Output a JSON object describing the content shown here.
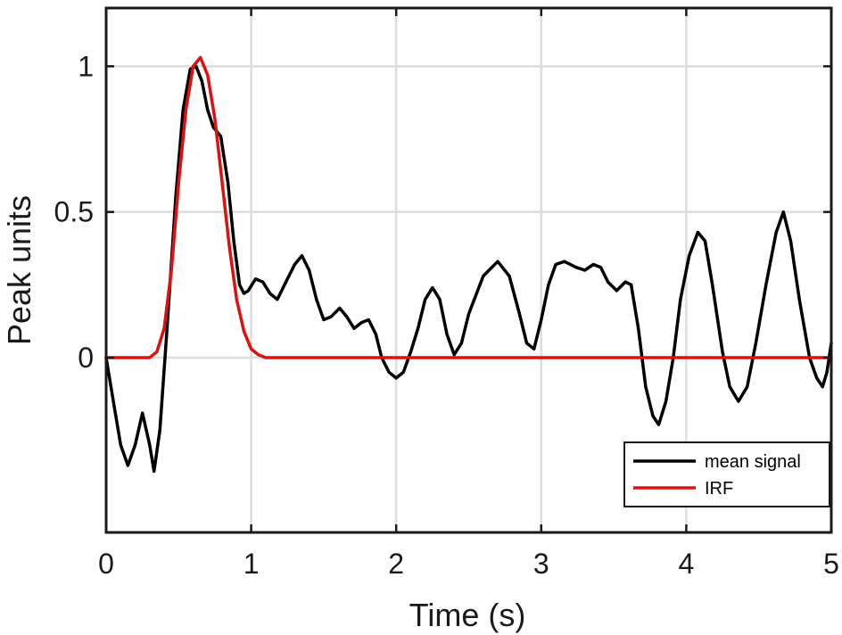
{
  "chart_data": {
    "type": "line",
    "title": "",
    "xlabel": "Time (s)",
    "ylabel": "Peak units",
    "xlim": [
      0,
      5
    ],
    "ylim": [
      -0.6,
      1.2
    ],
    "x_ticks": [
      {
        "value": 0,
        "label": "0"
      },
      {
        "value": 1,
        "label": "1"
      },
      {
        "value": 2,
        "label": "2"
      },
      {
        "value": 3,
        "label": "3"
      },
      {
        "value": 4,
        "label": "4"
      },
      {
        "value": 5,
        "label": "5"
      }
    ],
    "y_ticks": [
      {
        "value": 0,
        "label": "0"
      },
      {
        "value": 0.5,
        "label": "0.5"
      },
      {
        "value": 1,
        "label": "1"
      }
    ],
    "grid": true,
    "legend_position": "bottom-right",
    "series": [
      {
        "name": "mean signal",
        "color": "#000000",
        "points": [
          [
            0.0,
            0.0
          ],
          [
            0.05,
            -0.15
          ],
          [
            0.1,
            -0.3
          ],
          [
            0.15,
            -0.37
          ],
          [
            0.2,
            -0.3
          ],
          [
            0.25,
            -0.19
          ],
          [
            0.3,
            -0.3
          ],
          [
            0.33,
            -0.39
          ],
          [
            0.37,
            -0.25
          ],
          [
            0.42,
            0.1
          ],
          [
            0.48,
            0.55
          ],
          [
            0.53,
            0.85
          ],
          [
            0.58,
            0.99
          ],
          [
            0.62,
            1.0
          ],
          [
            0.66,
            0.95
          ],
          [
            0.7,
            0.85
          ],
          [
            0.74,
            0.79
          ],
          [
            0.79,
            0.76
          ],
          [
            0.84,
            0.6
          ],
          [
            0.88,
            0.4
          ],
          [
            0.92,
            0.25
          ],
          [
            0.95,
            0.22
          ],
          [
            0.98,
            0.23
          ],
          [
            1.03,
            0.27
          ],
          [
            1.08,
            0.26
          ],
          [
            1.13,
            0.22
          ],
          [
            1.18,
            0.2
          ],
          [
            1.23,
            0.25
          ],
          [
            1.3,
            0.32
          ],
          [
            1.35,
            0.35
          ],
          [
            1.4,
            0.3
          ],
          [
            1.45,
            0.2
          ],
          [
            1.5,
            0.13
          ],
          [
            1.55,
            0.14
          ],
          [
            1.61,
            0.17
          ],
          [
            1.66,
            0.14
          ],
          [
            1.71,
            0.1
          ],
          [
            1.76,
            0.12
          ],
          [
            1.81,
            0.13
          ],
          [
            1.86,
            0.08
          ],
          [
            1.9,
            0.0
          ],
          [
            1.95,
            -0.05
          ],
          [
            2.0,
            -0.07
          ],
          [
            2.05,
            -0.05
          ],
          [
            2.1,
            0.02
          ],
          [
            2.15,
            0.1
          ],
          [
            2.2,
            0.2
          ],
          [
            2.25,
            0.24
          ],
          [
            2.3,
            0.2
          ],
          [
            2.35,
            0.08
          ],
          [
            2.4,
            0.01
          ],
          [
            2.45,
            0.05
          ],
          [
            2.5,
            0.15
          ],
          [
            2.6,
            0.28
          ],
          [
            2.7,
            0.33
          ],
          [
            2.78,
            0.28
          ],
          [
            2.85,
            0.15
          ],
          [
            2.9,
            0.05
          ],
          [
            2.95,
            0.03
          ],
          [
            3.0,
            0.13
          ],
          [
            3.05,
            0.25
          ],
          [
            3.1,
            0.32
          ],
          [
            3.16,
            0.33
          ],
          [
            3.24,
            0.31
          ],
          [
            3.3,
            0.3
          ],
          [
            3.36,
            0.32
          ],
          [
            3.41,
            0.31
          ],
          [
            3.46,
            0.26
          ],
          [
            3.52,
            0.23
          ],
          [
            3.58,
            0.26
          ],
          [
            3.62,
            0.25
          ],
          [
            3.67,
            0.1
          ],
          [
            3.72,
            -0.1
          ],
          [
            3.77,
            -0.2
          ],
          [
            3.81,
            -0.23
          ],
          [
            3.86,
            -0.15
          ],
          [
            3.91,
            0.0
          ],
          [
            3.96,
            0.2
          ],
          [
            4.02,
            0.35
          ],
          [
            4.08,
            0.43
          ],
          [
            4.13,
            0.4
          ],
          [
            4.18,
            0.25
          ],
          [
            4.25,
            0.02
          ],
          [
            4.3,
            -0.1
          ],
          [
            4.36,
            -0.15
          ],
          [
            4.42,
            -0.1
          ],
          [
            4.48,
            0.05
          ],
          [
            4.55,
            0.25
          ],
          [
            4.62,
            0.43
          ],
          [
            4.67,
            0.5
          ],
          [
            4.72,
            0.4
          ],
          [
            4.78,
            0.2
          ],
          [
            4.85,
            0.0
          ],
          [
            4.9,
            -0.07
          ],
          [
            4.94,
            -0.1
          ],
          [
            4.97,
            -0.05
          ],
          [
            5.0,
            0.05
          ]
        ]
      },
      {
        "name": "IRF",
        "color": "#e01010",
        "points": [
          [
            0.0,
            0.0
          ],
          [
            0.3,
            0.0
          ],
          [
            0.35,
            0.02
          ],
          [
            0.4,
            0.1
          ],
          [
            0.45,
            0.3
          ],
          [
            0.5,
            0.6
          ],
          [
            0.55,
            0.85
          ],
          [
            0.6,
            1.0
          ],
          [
            0.65,
            1.03
          ],
          [
            0.7,
            0.97
          ],
          [
            0.75,
            0.82
          ],
          [
            0.8,
            0.6
          ],
          [
            0.85,
            0.38
          ],
          [
            0.9,
            0.2
          ],
          [
            0.95,
            0.09
          ],
          [
            1.0,
            0.03
          ],
          [
            1.05,
            0.01
          ],
          [
            1.1,
            0.0
          ],
          [
            5.0,
            0.0
          ]
        ]
      }
    ]
  },
  "colors": {
    "axes": "#1a1a1a",
    "grid": "#dddddd",
    "background": "#ffffff"
  }
}
